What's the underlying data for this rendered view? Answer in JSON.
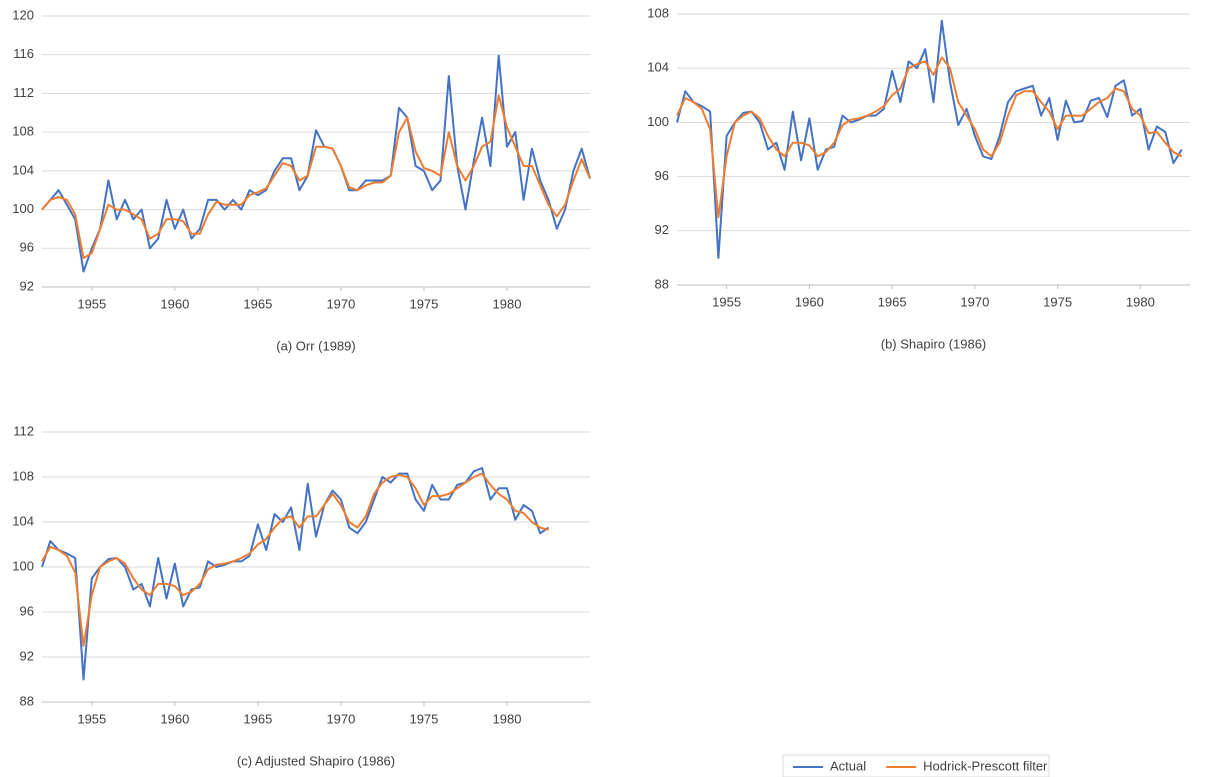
{
  "chart_data": [
    {
      "type": "line",
      "title": "(a) Orr (1989)",
      "x": [
        1952,
        1952.5,
        1953,
        1953.5,
        1954,
        1954.5,
        1955,
        1955.5,
        1956,
        1956.5,
        1957,
        1957.5,
        1958,
        1958.5,
        1959,
        1959.5,
        1960,
        1960.5,
        1961,
        1961.5,
        1962,
        1962.5,
        1963,
        1963.5,
        1964,
        1964.5,
        1965,
        1965.5,
        1966,
        1966.5,
        1967,
        1967.5,
        1968,
        1968.5,
        1969,
        1969.5,
        1970,
        1970.5,
        1971,
        1971.5,
        1972,
        1972.5,
        1973,
        1973.5,
        1974,
        1974.5,
        1975,
        1975.5,
        1976,
        1976.5,
        1977,
        1977.5,
        1978,
        1978.5,
        1979,
        1979.5,
        1980,
        1980.5,
        1981,
        1981.5,
        1982,
        1982.5,
        1983,
        1983.5,
        1984,
        1984.5,
        1985
      ],
      "xlim": [
        1952,
        1985
      ],
      "xticks": [
        1955,
        1960,
        1965,
        1970,
        1975,
        1980
      ],
      "ylim": [
        92,
        120
      ],
      "yticks": [
        92,
        96,
        100,
        104,
        108,
        112,
        116,
        120
      ],
      "grid": true,
      "series": [
        {
          "color": "#4472c4",
          "values": [
            100,
            101,
            102,
            100.5,
            99,
            93.6,
            96,
            98,
            103,
            99,
            101,
            99,
            100,
            96,
            97,
            101,
            98,
            100,
            97,
            98,
            101,
            101,
            100,
            101,
            100,
            102,
            101.5,
            102,
            104,
            105.3,
            105.3,
            102,
            103.5,
            108.2,
            106.5,
            106.3,
            104.5,
            102,
            102,
            103,
            103,
            103,
            103.5,
            110.5,
            109.5,
            104.5,
            104,
            102,
            103,
            113.8,
            104.5,
            100,
            105,
            109.5,
            104.5,
            115.9,
            106.5,
            108,
            101,
            106.3,
            103,
            101,
            98,
            100,
            104,
            106.3,
            103.2
          ]
        },
        {
          "color": "#ed7d31",
          "values": [
            100,
            101,
            101.3,
            101,
            99.5,
            95,
            95.5,
            98,
            100.5,
            100,
            100,
            99.5,
            99,
            97,
            97.5,
            99,
            99,
            98.8,
            97.5,
            97.5,
            99.5,
            100.8,
            100.5,
            100.5,
            100.5,
            101.5,
            101.8,
            102.2,
            103.5,
            104.8,
            104.5,
            103,
            103.5,
            106.5,
            106.5,
            106.3,
            104.5,
            102.3,
            102,
            102.5,
            102.8,
            102.8,
            103.5,
            108,
            109.5,
            106,
            104.3,
            104,
            103.5,
            108,
            104.5,
            103,
            104.5,
            106.5,
            107,
            111.8,
            108.5,
            106.5,
            104.5,
            104.5,
            102.5,
            100.5,
            99.3,
            100.5,
            103,
            105.2,
            103.2
          ]
        }
      ]
    },
    {
      "type": "line",
      "title": "(b) Shapiro (1986)",
      "x": [
        1952,
        1952.5,
        1953,
        1953.5,
        1954,
        1954.5,
        1955,
        1955.5,
        1956,
        1956.5,
        1957,
        1957.5,
        1958,
        1958.5,
        1959,
        1959.5,
        1960,
        1960.5,
        1961,
        1961.5,
        1962,
        1962.5,
        1963,
        1963.5,
        1964,
        1964.5,
        1965,
        1965.5,
        1966,
        1966.5,
        1967,
        1967.5,
        1968,
        1968.5,
        1969,
        1969.5,
        1970,
        1970.5,
        1971,
        1971.5,
        1972,
        1972.5,
        1973,
        1973.5,
        1974,
        1974.5,
        1975,
        1975.5,
        1976,
        1976.5,
        1977,
        1977.5,
        1978,
        1978.5,
        1979,
        1979.5,
        1980,
        1980.5,
        1981,
        1981.5,
        1982,
        1982.5
      ],
      "xlim": [
        1952,
        1983
      ],
      "xticks": [
        1955,
        1960,
        1965,
        1970,
        1975,
        1980
      ],
      "ylim": [
        88,
        108
      ],
      "yticks": [
        88,
        92,
        96,
        100,
        104,
        108
      ],
      "grid": true,
      "series": [
        {
          "color": "#4472c4",
          "values": [
            100,
            102.3,
            101.5,
            101.2,
            100.8,
            90,
            99,
            100,
            100.7,
            100.8,
            100,
            98,
            98.5,
            96.5,
            100.8,
            97.2,
            100.3,
            96.5,
            98,
            98.2,
            100.5,
            100,
            100.2,
            100.5,
            100.5,
            101,
            103.8,
            101.5,
            104.5,
            104,
            105.4,
            101.5,
            107.5,
            103,
            99.8,
            101,
            99,
            97.5,
            97.3,
            99,
            101.5,
            102.3,
            102.5,
            102.7,
            100.5,
            101.8,
            98.7,
            101.6,
            100,
            100.1,
            101.6,
            101.8,
            100.4,
            102.7,
            103.1,
            100.5,
            101,
            98,
            99.7,
            99.3,
            97,
            98
          ]
        },
        {
          "color": "#ed7d31",
          "values": [
            100.5,
            101.8,
            101.5,
            101,
            99.5,
            93,
            97.5,
            100,
            100.5,
            100.8,
            100.3,
            99,
            98,
            97.5,
            98.5,
            98.5,
            98.3,
            97.5,
            97.8,
            98.5,
            99.8,
            100.2,
            100.3,
            100.5,
            100.8,
            101.2,
            102,
            102.5,
            104,
            104.3,
            104.5,
            103.5,
            104.8,
            104,
            101.5,
            100.5,
            99.5,
            98,
            97.5,
            98.5,
            100.5,
            102,
            102.3,
            102.3,
            101.5,
            100.8,
            99.5,
            100.5,
            100.5,
            100.5,
            101,
            101.5,
            101.8,
            102.5,
            102.3,
            101,
            100.5,
            99.2,
            99.3,
            98.5,
            97.8,
            97.5
          ]
        }
      ]
    },
    {
      "type": "line",
      "title": "(c) Adjusted Shapiro (1986)",
      "x": [
        1952,
        1952.5,
        1953,
        1953.5,
        1954,
        1954.5,
        1955,
        1955.5,
        1956,
        1956.5,
        1957,
        1957.5,
        1958,
        1958.5,
        1959,
        1959.5,
        1960,
        1960.5,
        1961,
        1961.5,
        1962,
        1962.5,
        1963,
        1963.5,
        1964,
        1964.5,
        1965,
        1965.5,
        1966,
        1966.5,
        1967,
        1967.5,
        1968,
        1968.5,
        1969,
        1969.5,
        1970,
        1970.5,
        1971,
        1971.5,
        1972,
        1972.5,
        1973,
        1973.5,
        1974,
        1974.5,
        1975,
        1975.5,
        1976,
        1976.5,
        1977,
        1977.5,
        1978,
        1978.5,
        1979,
        1979.5,
        1980,
        1980.5,
        1981,
        1981.5,
        1982,
        1982.5
      ],
      "xlim": [
        1952,
        1985
      ],
      "xticks": [
        1955,
        1960,
        1965,
        1970,
        1975,
        1980
      ],
      "ylim": [
        88,
        112
      ],
      "yticks": [
        88,
        92,
        96,
        100,
        104,
        108,
        112
      ],
      "grid": true,
      "series": [
        {
          "color": "#4472c4",
          "values": [
            100,
            102.3,
            101.5,
            101.2,
            100.8,
            90,
            99,
            100,
            100.7,
            100.8,
            100,
            98,
            98.5,
            96.5,
            100.8,
            97.2,
            100.3,
            96.5,
            98,
            98.2,
            100.5,
            100,
            100.2,
            100.5,
            100.5,
            101,
            103.8,
            101.5,
            104.7,
            104,
            105.3,
            101.5,
            107.4,
            102.7,
            105.5,
            106.8,
            106,
            103.5,
            103,
            104,
            106,
            108,
            107.5,
            108.3,
            108.3,
            106,
            105,
            107.3,
            106,
            106,
            107.3,
            107.5,
            108.5,
            108.8,
            106,
            107,
            107,
            104.2,
            105.5,
            105,
            103,
            103.5
          ]
        },
        {
          "color": "#ed7d31",
          "values": [
            100.5,
            101.8,
            101.5,
            101,
            99.5,
            93,
            97.5,
            100,
            100.5,
            100.8,
            100.3,
            99,
            98,
            97.5,
            98.5,
            98.5,
            98.3,
            97.5,
            97.8,
            98.5,
            99.8,
            100.2,
            100.3,
            100.5,
            100.8,
            101.2,
            102,
            102.5,
            103.5,
            104.3,
            104.5,
            103.5,
            104.5,
            104.5,
            105.5,
            106.5,
            105.5,
            104,
            103.5,
            104.5,
            106.5,
            107.5,
            108,
            108.2,
            108,
            107,
            105.5,
            106.3,
            106.3,
            106.5,
            107,
            107.5,
            108,
            108.3,
            107.3,
            106.5,
            106,
            105,
            104.8,
            104,
            103.5,
            103.3
          ]
        }
      ]
    }
  ],
  "legend": {
    "position": "bottom-right",
    "entries": [
      "Actual",
      "Hodrick-Prescott filter"
    ]
  }
}
